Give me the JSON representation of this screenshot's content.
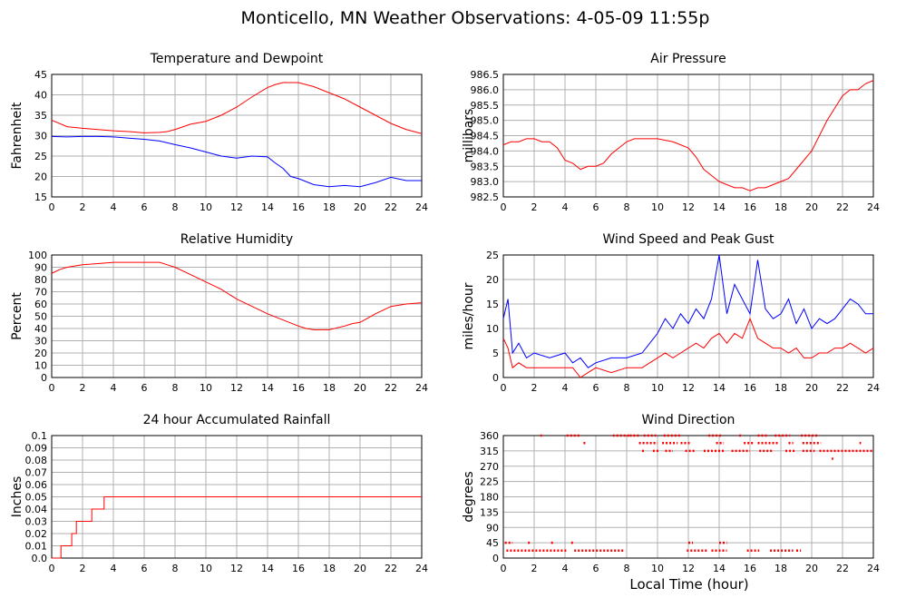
{
  "page": {
    "title": "Monticello, MN Weather Observations: 4-05-09 11:55p",
    "xlabel_bottom": "Local Time (hour)"
  },
  "colors": {
    "red": "#ff0000",
    "blue": "#0000ff",
    "grid": "#b0b0b0",
    "frame": "#000000"
  },
  "chart_data": [
    {
      "id": "temp",
      "type": "line",
      "title": "Temperature and Dewpoint",
      "xlabel": "",
      "ylabel": "Fahrenheit",
      "xlim": [
        0,
        24
      ],
      "ylim": [
        15,
        45
      ],
      "xticks": [
        "0",
        "2",
        "4",
        "6",
        "8",
        "10",
        "12",
        "14",
        "16",
        "18",
        "20",
        "22",
        "24"
      ],
      "yticks": [
        "15",
        "20",
        "25",
        "30",
        "35",
        "40",
        "45"
      ],
      "grid": true,
      "series": [
        {
          "color": "#ff0000",
          "x": [
            0,
            1,
            2,
            3,
            4,
            5,
            6,
            7,
            7.5,
            8,
            9,
            10,
            11,
            12,
            13,
            14,
            14.5,
            15,
            16,
            17,
            18,
            19,
            20,
            21,
            22,
            23,
            24
          ],
          "values": [
            33.8,
            32.2,
            31.8,
            31.5,
            31.2,
            31,
            30.7,
            30.8,
            31,
            31.5,
            32.8,
            33.5,
            35,
            37,
            39.5,
            41.8,
            42.5,
            43,
            43,
            42,
            40.5,
            39,
            37,
            35,
            33,
            31.5,
            30.5
          ]
        },
        {
          "color": "#0000ff",
          "x": [
            0,
            1,
            2,
            3,
            4,
            5,
            6,
            7,
            8,
            9,
            10,
            11,
            12,
            13,
            14,
            14.5,
            15,
            15.5,
            16,
            17,
            18,
            19,
            20,
            21,
            22,
            23,
            24
          ],
          "values": [
            29.8,
            29.7,
            29.8,
            29.8,
            29.7,
            29.4,
            29.1,
            28.7,
            27.8,
            27,
            26,
            25,
            24.5,
            25,
            24.8,
            23.3,
            22,
            20,
            19.5,
            18,
            17.5,
            17.8,
            17.5,
            18.5,
            19.8,
            19,
            19
          ]
        }
      ]
    },
    {
      "id": "pressure",
      "type": "line",
      "title": "Air Pressure",
      "xlabel": "",
      "ylabel": "millibars",
      "xlim": [
        0,
        24
      ],
      "ylim": [
        982.5,
        986.5
      ],
      "xticks": [
        "0",
        "2",
        "4",
        "6",
        "8",
        "10",
        "12",
        "14",
        "16",
        "18",
        "20",
        "22",
        "24"
      ],
      "yticks": [
        "982.5",
        "983.0",
        "983.5",
        "984.0",
        "984.5",
        "985.0",
        "985.5",
        "986.0",
        "986.5"
      ],
      "grid": true,
      "series": [
        {
          "color": "#ff0000",
          "x": [
            0,
            0.5,
            1,
            1.5,
            2,
            2.5,
            3,
            3.5,
            4,
            4.5,
            5,
            5.5,
            6,
            6.5,
            7,
            7.5,
            8,
            8.5,
            9,
            10,
            11,
            11.5,
            12,
            12.5,
            13,
            13.5,
            14,
            14.5,
            15,
            15.5,
            16,
            16.5,
            17,
            17.5,
            18,
            18.5,
            19,
            19.5,
            20,
            20.5,
            21,
            21.5,
            22,
            22.5,
            23,
            23.5,
            24
          ],
          "values": [
            984.2,
            984.3,
            984.3,
            984.4,
            984.4,
            984.3,
            984.3,
            984.1,
            983.7,
            983.6,
            983.4,
            983.5,
            983.5,
            983.6,
            983.9,
            984.1,
            984.3,
            984.4,
            984.4,
            984.4,
            984.3,
            984.2,
            984.1,
            983.8,
            983.4,
            983.2,
            983.0,
            982.9,
            982.8,
            982.8,
            982.7,
            982.8,
            982.8,
            982.9,
            983.0,
            983.1,
            983.4,
            983.7,
            984.0,
            984.5,
            985.0,
            985.4,
            985.8,
            986.0,
            986.0,
            986.2,
            986.3
          ]
        }
      ]
    },
    {
      "id": "humidity",
      "type": "line",
      "title": "Relative Humidity",
      "xlabel": "",
      "ylabel": "Percent",
      "xlim": [
        0,
        24
      ],
      "ylim": [
        0,
        100
      ],
      "xticks": [
        "0",
        "2",
        "4",
        "6",
        "8",
        "10",
        "12",
        "14",
        "16",
        "18",
        "20",
        "22",
        "24"
      ],
      "yticks": [
        "0",
        "10",
        "20",
        "30",
        "40",
        "50",
        "60",
        "70",
        "80",
        "90",
        "100"
      ],
      "grid": true,
      "series": [
        {
          "color": "#ff0000",
          "x": [
            0,
            0.5,
            1,
            2,
            3,
            4,
            5,
            6,
            7,
            7.5,
            8,
            9,
            10,
            11,
            12,
            13,
            14,
            15,
            16,
            16.5,
            17,
            18,
            19,
            19.5,
            20,
            21,
            22,
            23,
            24
          ],
          "values": [
            85,
            88,
            90,
            92,
            93,
            94,
            94,
            94,
            94,
            92,
            90,
            84,
            78,
            72,
            64,
            58,
            52,
            47,
            42,
            40,
            39,
            39,
            42,
            44,
            45,
            52,
            58,
            60,
            61
          ]
        }
      ]
    },
    {
      "id": "wind",
      "type": "line",
      "title": "Wind Speed and Peak Gust",
      "xlabel": "",
      "ylabel": "miles/hour",
      "xlim": [
        0,
        24
      ],
      "ylim": [
        0,
        25
      ],
      "xticks": [
        "0",
        "2",
        "4",
        "6",
        "8",
        "10",
        "12",
        "14",
        "16",
        "18",
        "20",
        "22",
        "24"
      ],
      "yticks": [
        "0",
        "5",
        "10",
        "15",
        "20",
        "25"
      ],
      "grid": true,
      "series": [
        {
          "color": "#0000ff",
          "x": [
            0,
            0.3,
            0.6,
            1,
            1.5,
            2,
            3,
            4,
            4.5,
            5,
            5.5,
            6,
            7,
            8,
            9,
            9.5,
            10,
            10.5,
            11,
            11.5,
            12,
            12.5,
            13,
            13.5,
            14,
            14.5,
            15,
            15.5,
            16,
            16.5,
            17,
            17.5,
            18,
            18.5,
            19,
            19.5,
            20,
            20.5,
            21,
            21.5,
            22,
            22.5,
            23,
            23.5,
            24
          ],
          "values": [
            12,
            16,
            5,
            7,
            4,
            5,
            4,
            5,
            3,
            4,
            2,
            3,
            4,
            4,
            5,
            7,
            9,
            12,
            10,
            13,
            11,
            14,
            12,
            16,
            25,
            13,
            19,
            16,
            13,
            24,
            14,
            12,
            13,
            16,
            11,
            14,
            10,
            12,
            11,
            12,
            14,
            16,
            15,
            13,
            13
          ]
        },
        {
          "color": "#ff0000",
          "x": [
            0,
            0.3,
            0.6,
            1,
            1.5,
            2,
            3,
            4,
            4.5,
            5,
            5.5,
            6,
            7,
            8,
            9,
            9.5,
            10,
            10.5,
            11,
            11.5,
            12,
            12.5,
            13,
            13.5,
            14,
            14.5,
            15,
            15.5,
            16,
            16.5,
            17,
            17.5,
            18,
            18.5,
            19,
            19.5,
            20,
            20.5,
            21,
            21.5,
            22,
            22.5,
            23,
            23.5,
            24
          ],
          "values": [
            8,
            6,
            2,
            3,
            2,
            2,
            2,
            2,
            2,
            0,
            1,
            2,
            1,
            2,
            2,
            3,
            4,
            5,
            4,
            5,
            6,
            7,
            6,
            8,
            9,
            7,
            9,
            8,
            12,
            8,
            7,
            6,
            6,
            5,
            6,
            4,
            4,
            5,
            5,
            6,
            6,
            7,
            6,
            5,
            6
          ]
        }
      ]
    },
    {
      "id": "rain",
      "type": "line",
      "title": "24 hour Accumulated Rainfall",
      "xlabel": "",
      "ylabel": "Inches",
      "xlim": [
        0,
        24
      ],
      "ylim": [
        0,
        0.1
      ],
      "xticks": [
        "0",
        "2",
        "4",
        "6",
        "8",
        "10",
        "12",
        "14",
        "16",
        "18",
        "20",
        "22",
        "24"
      ],
      "yticks": [
        "0.0",
        "0.01",
        "0.02",
        "0.03",
        "0.04",
        "0.05",
        "0.06",
        "0.07",
        "0.08",
        "0.09",
        "0.1"
      ],
      "grid": true,
      "series": [
        {
          "color": "#ff0000",
          "step": true,
          "x": [
            0,
            0.6,
            1.0,
            1.3,
            1.5,
            1.6,
            2.5,
            2.6,
            3.2,
            3.4,
            24
          ],
          "values": [
            0,
            0.01,
            0.01,
            0.02,
            0.02,
            0.03,
            0.03,
            0.04,
            0.04,
            0.05,
            0.05
          ]
        }
      ]
    },
    {
      "id": "winddir",
      "type": "scatter",
      "title": "Wind Direction",
      "xlabel": "Local Time (hour)",
      "ylabel": "degrees",
      "xlim": [
        0,
        24
      ],
      "ylim": [
        0,
        360
      ],
      "xticks": [
        "0",
        "2",
        "4",
        "6",
        "8",
        "10",
        "12",
        "14",
        "16",
        "18",
        "20",
        "22",
        "24"
      ],
      "yticks": [
        "0",
        "45",
        "90",
        "135",
        "180",
        "225",
        "270",
        "315",
        "360"
      ],
      "grid": true,
      "series": [
        {
          "color": "#ff0000",
          "segments": [
            [
              0.2,
              4.2,
              22
            ],
            [
              4.6,
              7.9,
              22
            ],
            [
              11.9,
              13.2,
              22
            ],
            [
              13.5,
              14.5,
              22
            ],
            [
              15.8,
              16.6,
              22
            ],
            [
              17.3,
              18.8,
              22
            ],
            [
              19.0,
              19.3,
              22
            ],
            [
              0.1,
              0.6,
              45
            ],
            [
              1.6,
              1.8,
              45
            ],
            [
              3.1,
              3.3,
              45
            ],
            [
              4.4,
              4.6,
              45
            ],
            [
              12.0,
              12.3,
              45
            ],
            [
              14.0,
              14.5,
              45
            ],
            [
              7.1,
              8.2,
              360
            ],
            [
              8.2,
              8.8,
              360
            ],
            [
              9.1,
              9.9,
              360
            ],
            [
              10.4,
              11.5,
              360
            ],
            [
              13.3,
              14.2,
              360
            ],
            [
              15.3,
              15.5,
              360
            ],
            [
              16.5,
              17.2,
              360
            ],
            [
              17.6,
              18.6,
              360
            ],
            [
              19.3,
              20.4,
              360
            ],
            [
              4.1,
              5.0,
              360
            ],
            [
              2.4,
              2.5,
              360
            ],
            [
              8.8,
              10.0,
              338
            ],
            [
              10.3,
              11.3,
              338
            ],
            [
              11.5,
              12.1,
              338
            ],
            [
              13.8,
              14.3,
              338
            ],
            [
              15.6,
              16.3,
              338
            ],
            [
              16.5,
              17.8,
              338
            ],
            [
              18.5,
              18.8,
              338
            ],
            [
              19.4,
              20.6,
              338
            ],
            [
              5.2,
              5.4,
              338
            ],
            [
              23.1,
              23.2,
              338
            ],
            [
              9.0,
              9.2,
              315
            ],
            [
              9.7,
              10.1,
              315
            ],
            [
              10.5,
              11.0,
              315
            ],
            [
              11.8,
              12.4,
              315
            ],
            [
              13.0,
              14.4,
              315
            ],
            [
              14.8,
              16.0,
              315
            ],
            [
              16.6,
              17.5,
              315
            ],
            [
              18.3,
              18.9,
              315
            ],
            [
              19.4,
              20.2,
              315
            ],
            [
              20.5,
              24.0,
              315
            ],
            [
              21.3,
              21.4,
              292
            ]
          ],
          "values": []
        }
      ]
    }
  ]
}
